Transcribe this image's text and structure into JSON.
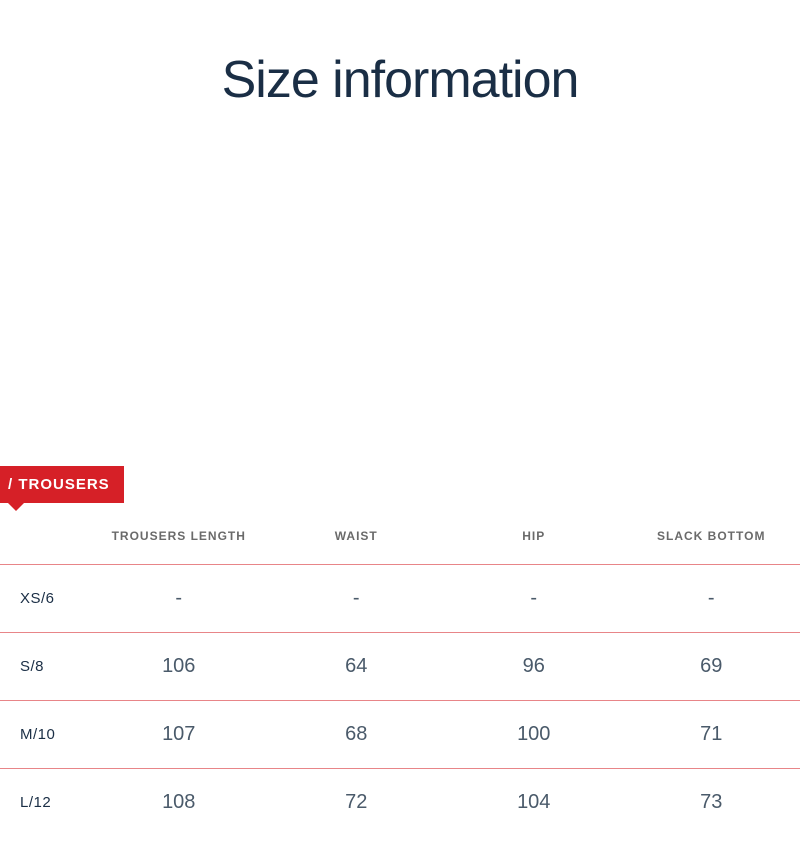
{
  "title": "Size information",
  "subtitle_faint": "",
  "badge": "/ TROUSERS",
  "table": {
    "columns": [
      "TROUSERS LENGTH",
      "WAIST",
      "HIP",
      "SLACK BOTTOM"
    ],
    "rows": [
      {
        "size": "XS/6",
        "values": [
          "-",
          "-",
          "-",
          "-"
        ]
      },
      {
        "size": "S/8",
        "values": [
          "106",
          "64",
          "96",
          "69"
        ]
      },
      {
        "size": "M/10",
        "values": [
          "107",
          "68",
          "100",
          "71"
        ]
      },
      {
        "size": "L/12",
        "values": [
          "108",
          "72",
          "104",
          "73"
        ]
      }
    ],
    "divider_color": "#d62027",
    "badge_bg": "#d62027",
    "title_color": "#1a2e45",
    "text_color": "#4a5a6a",
    "header_text_color": "#6a6a6a"
  }
}
